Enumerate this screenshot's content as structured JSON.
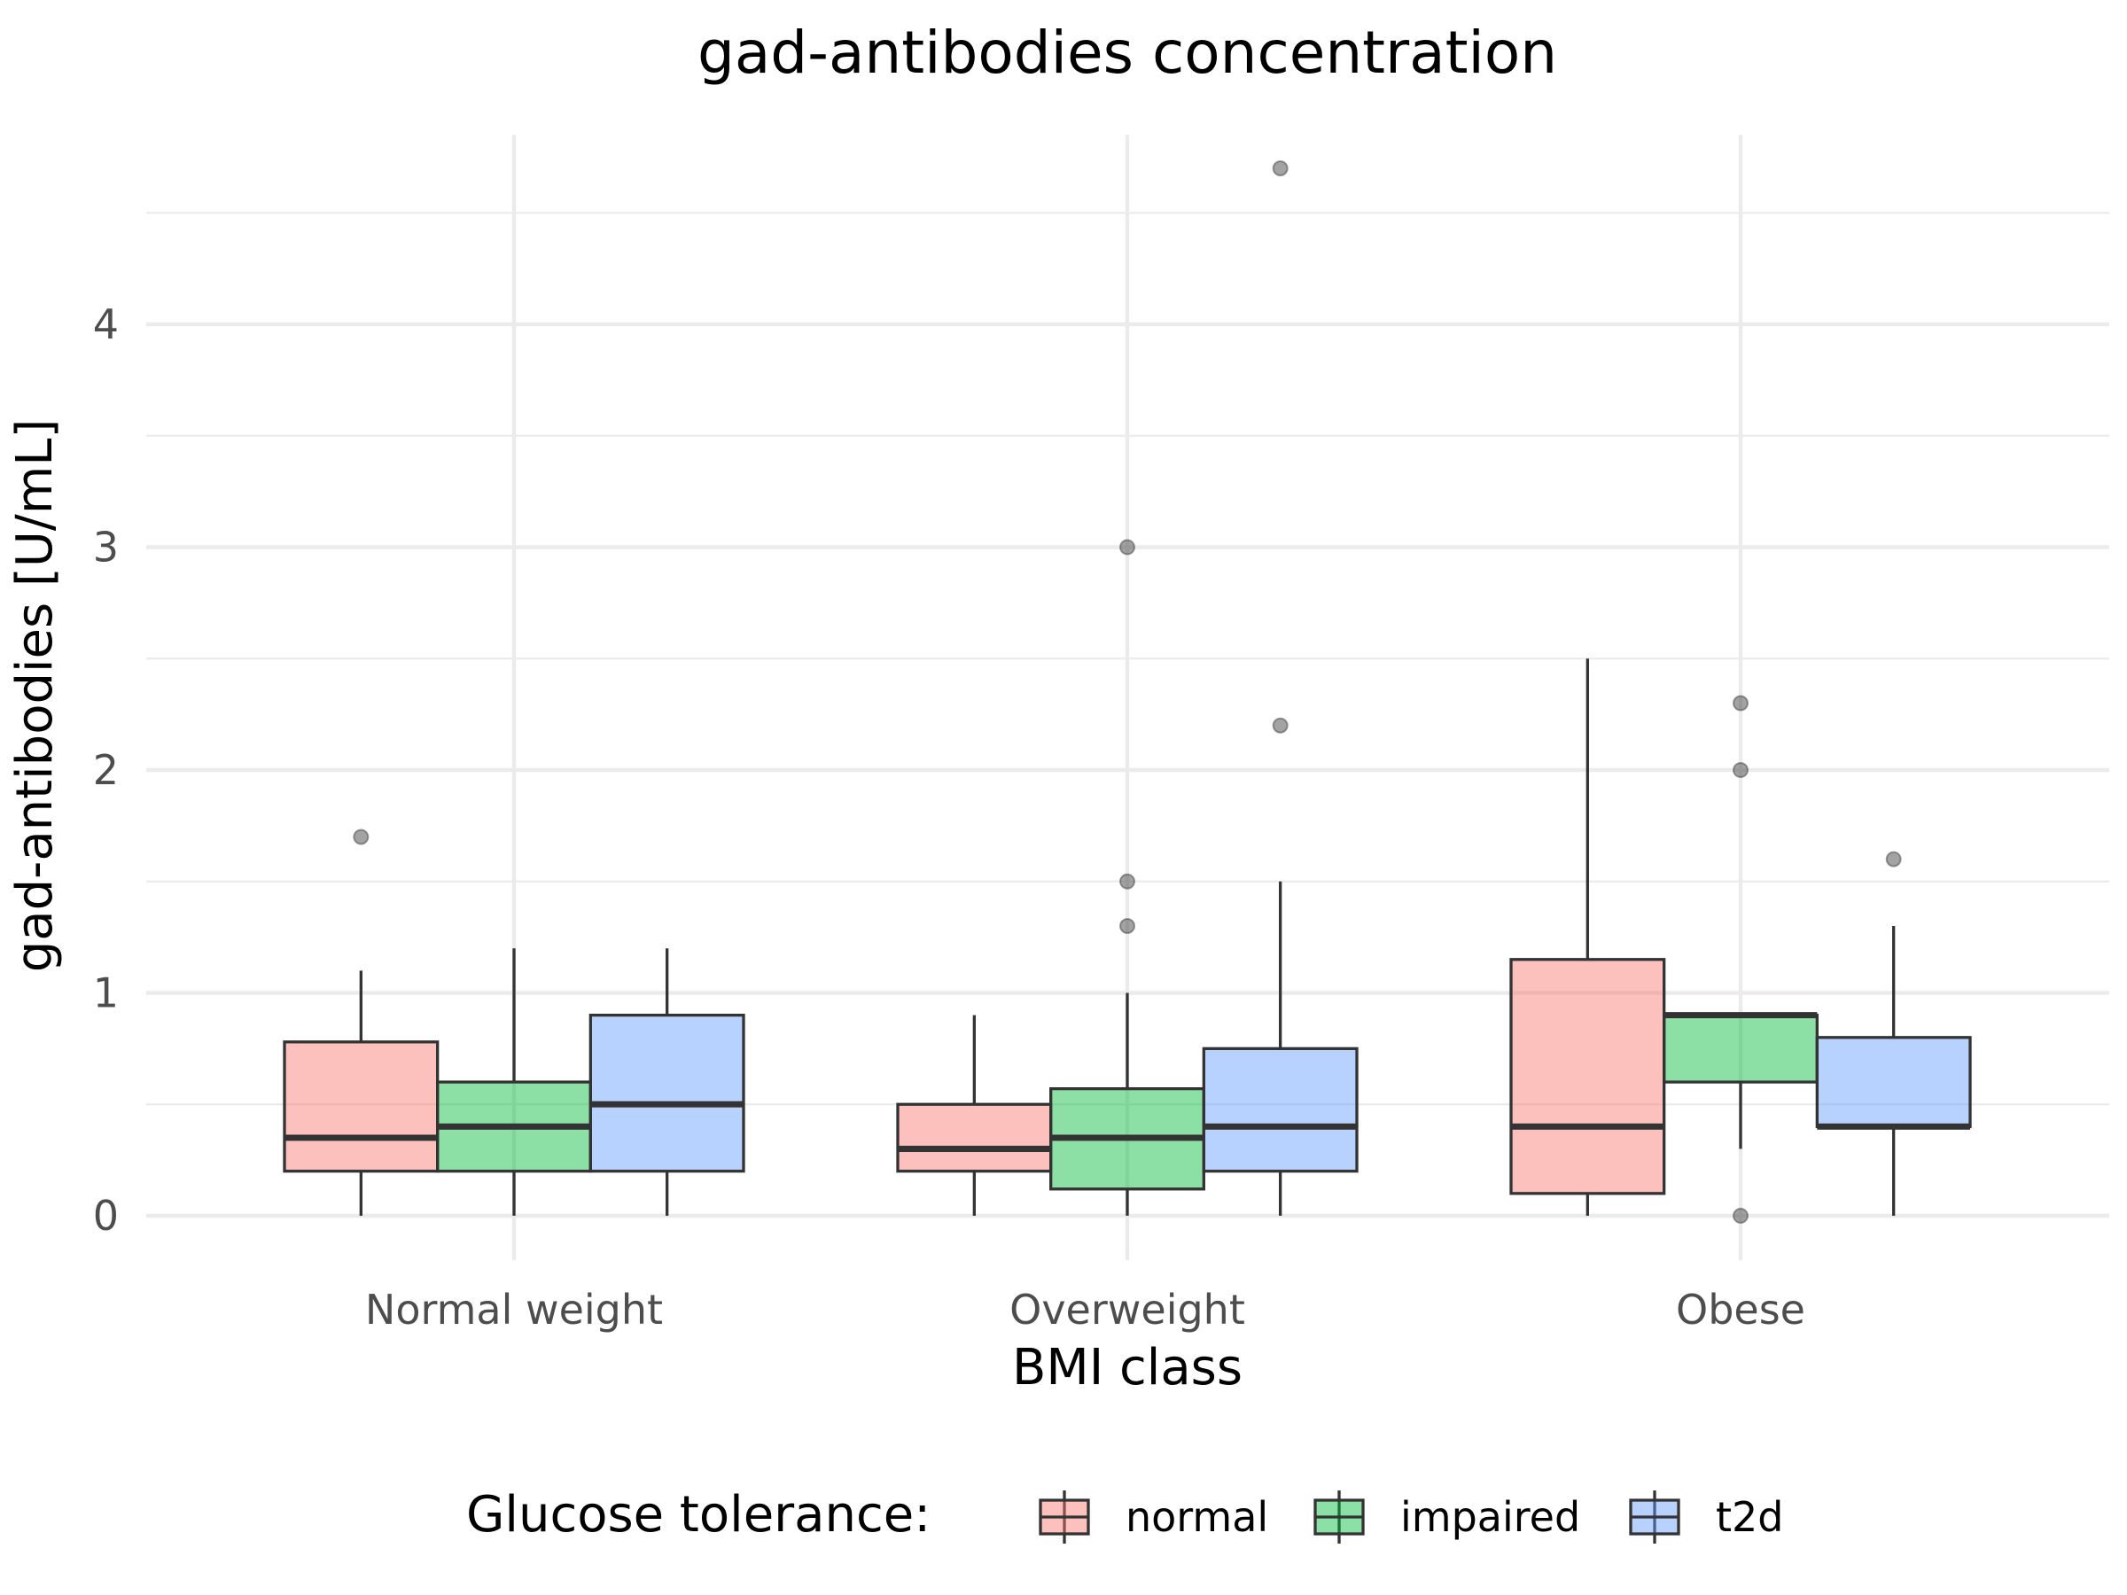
{
  "chart_data": {
    "type": "boxplot",
    "title": "gad-antibodies concentration",
    "xlabel": "BMI class",
    "ylabel": "gad-antibodies [U/mL]",
    "categories": [
      "Normal weight",
      "Overweight",
      "Obese"
    ],
    "y_ticks": [
      0,
      1,
      2,
      3,
      4
    ],
    "ylim": [
      -0.2,
      4.85
    ],
    "grid": true,
    "legend": {
      "title": "Glucose tolerance:",
      "position": "bottom"
    },
    "series": [
      {
        "name": "normal",
        "color": "#f8766d",
        "boxes": [
          {
            "whisker_low": 0.0,
            "q1": 0.2,
            "median": 0.35,
            "q3": 0.78,
            "whisker_high": 1.1,
            "outliers": [
              1.7
            ]
          },
          {
            "whisker_low": 0.0,
            "q1": 0.2,
            "median": 0.3,
            "q3": 0.5,
            "whisker_high": 0.9,
            "outliers": []
          },
          {
            "whisker_low": 0.0,
            "q1": 0.1,
            "median": 0.4,
            "q3": 1.15,
            "whisker_high": 2.5,
            "outliers": []
          }
        ]
      },
      {
        "name": "impaired",
        "color": "#00ba38",
        "boxes": [
          {
            "whisker_low": 0.0,
            "q1": 0.2,
            "median": 0.4,
            "q3": 0.6,
            "whisker_high": 1.2,
            "outliers": []
          },
          {
            "whisker_low": 0.0,
            "q1": 0.12,
            "median": 0.35,
            "q3": 0.57,
            "whisker_high": 1.0,
            "outliers": [
              1.3,
              1.5,
              3.0
            ]
          },
          {
            "whisker_low": 0.3,
            "q1": 0.6,
            "median": 0.9,
            "q3": 0.9,
            "whisker_high": 0.9,
            "outliers": [
              0.0,
              2.0,
              2.3
            ]
          }
        ]
      },
      {
        "name": "t2d",
        "color": "#619cff",
        "boxes": [
          {
            "whisker_low": 0.0,
            "q1": 0.2,
            "median": 0.5,
            "q3": 0.9,
            "whisker_high": 1.2,
            "outliers": []
          },
          {
            "whisker_low": 0.0,
            "q1": 0.2,
            "median": 0.4,
            "q3": 0.75,
            "whisker_high": 1.5,
            "outliers": [
              2.2,
              4.7
            ]
          },
          {
            "whisker_low": 0.0,
            "q1": 0.4,
            "median": 0.4,
            "q3": 0.8,
            "whisker_high": 1.3,
            "outliers": [
              1.6
            ]
          }
        ]
      }
    ]
  }
}
